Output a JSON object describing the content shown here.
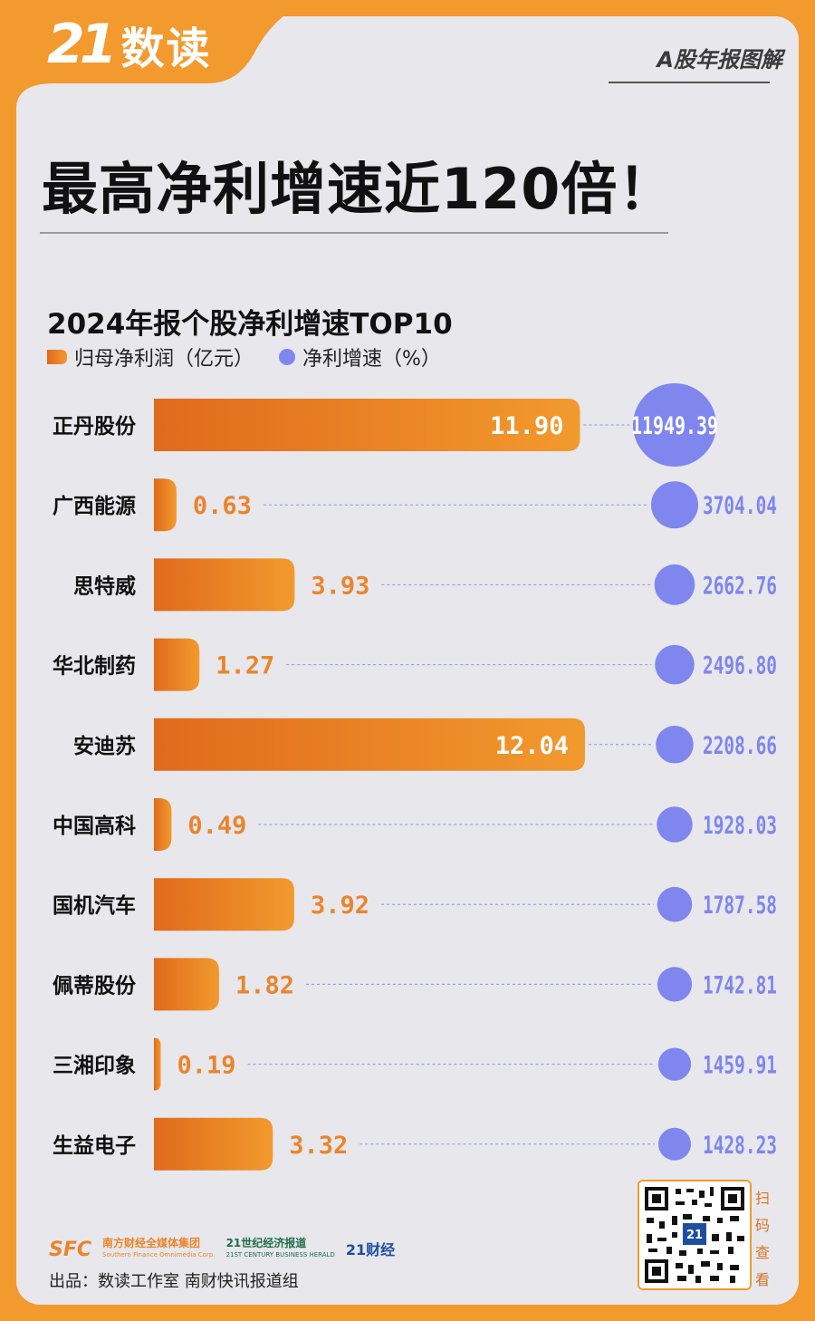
{
  "brand": {
    "logo_number": "21",
    "logo_text": "数读"
  },
  "series_title": "A股年报图解",
  "headline": "最高净利增速近120倍！",
  "legend": {
    "bar_label": "归母净利润（亿元）",
    "dot_label": "净利增速（%）"
  },
  "colors": {
    "frame": "#f29a2e",
    "bar_start": "#e06a1c",
    "bar_end": "#f29a2e",
    "dot": "#7f86ee",
    "growth_text": "#7f86ee",
    "profit_text": "#e9852c"
  },
  "chart_data": {
    "type": "bar",
    "title": "2024年报个股净利增速TOP10",
    "categories": [
      "正丹股份",
      "广西能源",
      "思特威",
      "华北制药",
      "安迪苏",
      "中国高科",
      "国机汽车",
      "佩蒂股份",
      "三湘印象",
      "生益电子"
    ],
    "series": [
      {
        "name": "归母净利润（亿元）",
        "values": [
          11.9,
          0.63,
          3.93,
          1.27,
          12.04,
          0.49,
          3.92,
          1.82,
          0.19,
          3.32
        ],
        "labels": [
          "11.90",
          "0.63",
          "3.93",
          "1.27",
          "12.04",
          "0.49",
          "3.92",
          "1.82",
          "0.19",
          "3.32"
        ]
      },
      {
        "name": "净利增速（%）",
        "values": [
          11949.39,
          3704.04,
          2662.76,
          2496.8,
          2208.66,
          1928.03,
          1787.58,
          1742.81,
          1459.91,
          1428.23
        ],
        "labels": [
          "11949.39",
          "3704.04",
          "2662.76",
          "2496.80",
          "2208.66",
          "1928.03",
          "1787.58",
          "1742.81",
          "1459.91",
          "1428.23"
        ]
      }
    ],
    "legend": "top-left"
  },
  "footer": {
    "logo_sfc": "SFC",
    "logo_sfc_name": "南方财经全媒体集团",
    "logo_sfc_en": "Southern Finance Omnimedia Corp.",
    "logo_herald": "21世纪经济报道",
    "logo_herald_en": "21ST CENTURY BUSINESS HERALD",
    "logo_21": "21财经",
    "credit": "出品：数读工作室  南财快讯报道组",
    "qr_hint": [
      "扫",
      "码",
      "查",
      "看"
    ]
  }
}
